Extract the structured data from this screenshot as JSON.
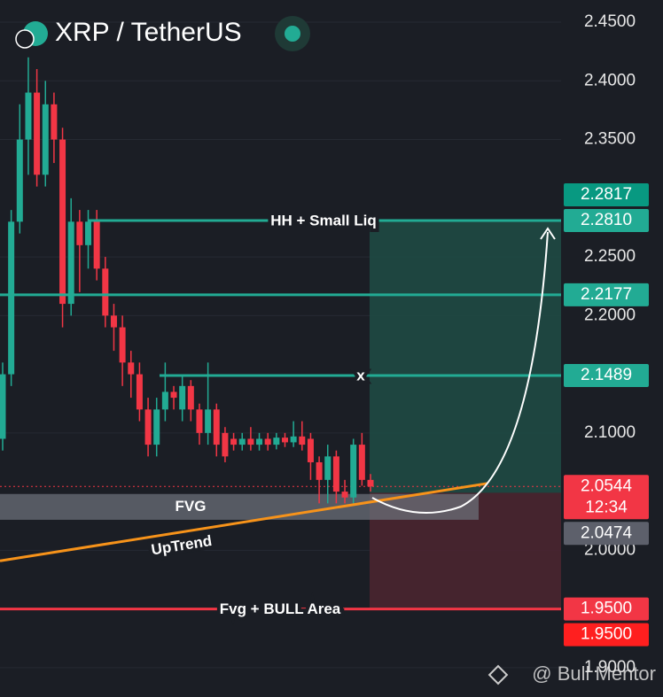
{
  "chart_data": {
    "type": "candlestick",
    "title": "XRP / TetherUS",
    "watermark": "@ Bull Mentor",
    "ylim": [
      1.875,
      2.4689
    ],
    "yticks": [
      {
        "value": 2.45,
        "label": "2.4500"
      },
      {
        "value": 2.4,
        "label": "2.4000"
      },
      {
        "value": 2.35,
        "label": "2.3500"
      },
      {
        "value": 2.25,
        "label": "2.2500"
      },
      {
        "value": 2.2,
        "label": "2.2000"
      },
      {
        "value": 2.1,
        "label": "2.1000"
      },
      {
        "value": 2.0,
        "label": "2.0000"
      },
      {
        "value": 1.9,
        "label": "1.9000"
      }
    ],
    "up_color": "#22ab94",
    "down_color": "#f23645",
    "open": [
      2.095,
      2.15,
      2.28,
      2.35,
      2.39,
      2.32,
      2.38,
      2.35,
      2.21,
      2.28,
      2.26,
      2.28,
      2.24,
      2.2,
      2.19,
      2.16,
      2.15,
      2.12,
      2.09,
      2.12,
      2.135,
      2.12,
      2.14,
      2.12,
      2.1,
      2.12,
      2.1,
      2.095,
      2.09,
      2.095,
      2.09,
      2.095,
      2.09,
      2.096,
      2.092,
      2.097,
      2.095,
      2.075,
      2.06,
      2.08,
      2.05,
      2.045,
      2.09,
      2.06
    ],
    "high": [
      2.16,
      2.29,
      2.38,
      2.42,
      2.41,
      2.4,
      2.39,
      2.36,
      2.3,
      2.29,
      2.29,
      2.29,
      2.25,
      2.21,
      2.2,
      2.17,
      2.16,
      2.13,
      2.13,
      2.16,
      2.14,
      2.15,
      2.145,
      2.125,
      2.16,
      2.125,
      2.105,
      2.1,
      2.1,
      2.105,
      2.1,
      2.1,
      2.1,
      2.1,
      2.11,
      2.11,
      2.1,
      2.08,
      2.09,
      2.085,
      2.06,
      2.095,
      2.1,
      2.065
    ],
    "low": [
      2.085,
      2.14,
      2.27,
      2.32,
      2.31,
      2.31,
      2.33,
      2.19,
      2.2,
      2.22,
      2.24,
      2.23,
      2.19,
      2.17,
      2.14,
      2.13,
      2.11,
      2.08,
      2.08,
      2.11,
      2.12,
      2.11,
      2.11,
      2.09,
      2.09,
      2.08,
      2.075,
      2.085,
      2.085,
      2.085,
      2.085,
      2.085,
      2.086,
      2.088,
      2.088,
      2.085,
      2.06,
      2.04,
      2.04,
      2.04,
      2.04,
      2.04,
      2.055,
      2.05
    ],
    "close": [
      2.15,
      2.28,
      2.35,
      2.39,
      2.32,
      2.38,
      2.35,
      2.21,
      2.28,
      2.26,
      2.28,
      2.24,
      2.2,
      2.19,
      2.16,
      2.15,
      2.12,
      2.09,
      2.12,
      2.135,
      2.13,
      2.14,
      2.12,
      2.1,
      2.12,
      2.09,
      2.08,
      2.09,
      2.095,
      2.09,
      2.095,
      2.09,
      2.096,
      2.092,
      2.097,
      2.09,
      2.075,
      2.06,
      2.08,
      2.05,
      2.045,
      2.09,
      2.06,
      2.0544
    ],
    "levels": [
      {
        "label": "HH + Small Liq",
        "value": 2.281,
        "color": "#22ab94"
      },
      {
        "value": 2.2177,
        "color": "#22ab94"
      },
      {
        "label": "x",
        "value": 2.1489,
        "color": "#22ab94"
      },
      {
        "label": "Fvg + BULL Area",
        "value": 1.95,
        "color": "#f23645"
      }
    ],
    "position": {
      "target": 2.281,
      "entry": 2.049,
      "stop": 1.95
    },
    "fvg": {
      "label": "FVG",
      "top": 2.048,
      "bottom": 2.026
    },
    "uptrend": {
      "label": "UpTrend",
      "start": 1.991,
      "end": 2.057,
      "color": "#f7931a"
    },
    "price_labels": [
      {
        "value": 2.281,
        "label": "2.2810",
        "color": "#22ab94"
      },
      {
        "value": 2.2817,
        "label": "2.2817",
        "color": "#089981"
      },
      {
        "value": 2.2177,
        "label": "2.2177",
        "color": "#22ab94"
      },
      {
        "value": 2.1489,
        "label": "2.1489",
        "color": "#22ab94"
      },
      {
        "value": 2.0544,
        "label": "2.0544",
        "countdown": "12:34",
        "color": "#f23645"
      },
      {
        "value": 2.0474,
        "label": "2.0474",
        "color": "#5d606b"
      },
      {
        "value": 1.95,
        "label": "1.9500",
        "color": "#f23645"
      },
      {
        "value": 1.95,
        "label": "1.9500",
        "color": "#ff1f1f"
      }
    ]
  }
}
